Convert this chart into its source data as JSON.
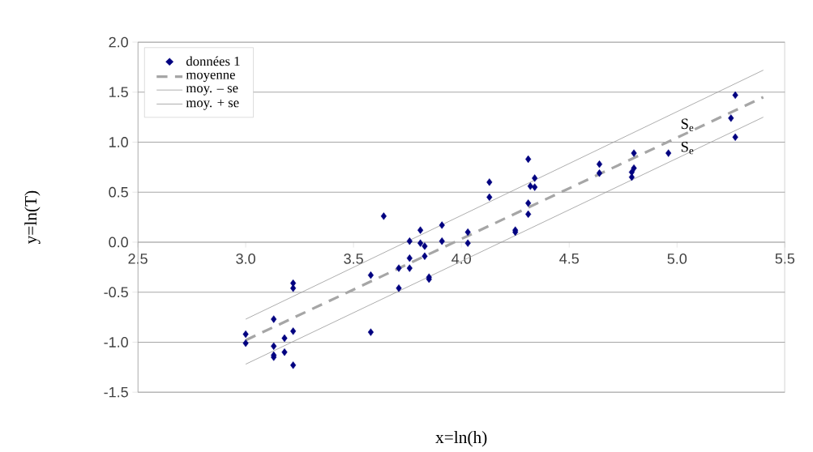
{
  "chart_data": {
    "type": "scatter",
    "xlabel": "x=ln(h)",
    "ylabel": "y=ln(T)",
    "xlim": [
      2.5,
      5.5
    ],
    "ylim": [
      -1.5,
      2.0
    ],
    "xticks": [
      {
        "value": 2.5,
        "label": "2.5"
      },
      {
        "value": 3.0,
        "label": "3.0"
      },
      {
        "value": 3.5,
        "label": "3.5"
      },
      {
        "value": 4.0,
        "label": "4.0"
      },
      {
        "value": 4.5,
        "label": "4.5"
      },
      {
        "value": 5.0,
        "label": "5.0"
      },
      {
        "value": 5.5,
        "label": "5.5"
      }
    ],
    "yticks": [
      {
        "value": -1.5,
        "label": "-1.5"
      },
      {
        "value": -1.0,
        "label": "-1.0"
      },
      {
        "value": -0.5,
        "label": "-0.5"
      },
      {
        "value": 0,
        "label": "0.0"
      },
      {
        "value": 0.5,
        "label": "0.5"
      },
      {
        "value": 1.0,
        "label": "1.0"
      },
      {
        "value": 1.5,
        "label": "1.5"
      },
      {
        "value": 2.0,
        "label": "2.0"
      }
    ],
    "grid": "y",
    "legend": "top left",
    "series": [
      {
        "name": "données 1",
        "color": "#000080",
        "marker": "diamond",
        "x": [
          3.0,
          3.0,
          3.13,
          3.13,
          3.13,
          3.13,
          3.18,
          3.18,
          3.22,
          3.22,
          3.22,
          3.22,
          3.58,
          3.58,
          3.64,
          3.71,
          3.71,
          3.76,
          3.76,
          3.76,
          3.81,
          3.81,
          3.83,
          3.83,
          3.85,
          3.85,
          3.91,
          3.91,
          4.03,
          4.03,
          4.13,
          4.13,
          4.25,
          4.25,
          4.31,
          4.31,
          4.31,
          4.32,
          4.34,
          4.34,
          4.64,
          4.64,
          4.79,
          4.79,
          4.8,
          4.8,
          4.96,
          5.25,
          5.27,
          5.27
        ],
        "values": [
          -0.92,
          -1.01,
          -0.77,
          -1.04,
          -1.13,
          -1.15,
          -0.96,
          -1.1,
          -0.41,
          -0.46,
          -0.89,
          -1.23,
          -0.33,
          -0.9,
          0.26,
          -0.26,
          -0.46,
          0.01,
          -0.16,
          -0.26,
          0.12,
          -0.01,
          -0.04,
          -0.14,
          -0.35,
          -0.37,
          0.17,
          0.01,
          0.1,
          -0.01,
          0.6,
          0.45,
          0.12,
          0.1,
          0.83,
          0.39,
          0.28,
          0.56,
          0.64,
          0.55,
          0.78,
          0.69,
          0.65,
          0.7,
          0.74,
          0.89,
          0.89,
          1.24,
          1.47,
          1.05
        ]
      },
      {
        "name": "moyenne",
        "type": "line",
        "color": "#a6a6a6",
        "line_style": "dashed",
        "x": [
          3.0,
          5.4
        ],
        "values": [
          -0.98,
          1.45
        ]
      },
      {
        "name": "moy. – se",
        "type": "line",
        "color": "#999999",
        "line_style": "solid",
        "x": [
          3.0,
          5.4
        ],
        "values": [
          -1.22,
          1.25
        ]
      },
      {
        "name": "moy. + se",
        "type": "line",
        "color": "#999999",
        "line_style": "solid",
        "x": [
          3.0,
          5.4
        ],
        "values": [
          -0.77,
          1.72
        ]
      }
    ],
    "annotations": [
      "S$_{e}$",
      "S$_{e}$"
    ]
  }
}
